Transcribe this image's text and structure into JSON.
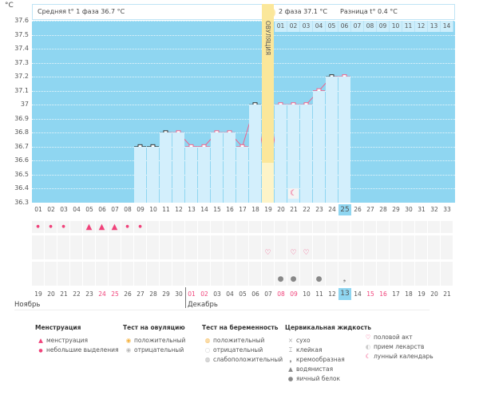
{
  "unit": "°C",
  "header": {
    "phase1": "Средняя t° 1 фаза 36.7 °C",
    "phase2": "2 фаза 37.1 °C",
    "diff": "Разница t° 0.4 °C"
  },
  "ovulation_label": "ОВУЛЯЦИЯ",
  "y_ticks": [
    "37.6",
    "37.5",
    "37.4",
    "37.3",
    "37.2",
    "37.1",
    "37",
    "36.9",
    "36.8",
    "36.7",
    "36.6",
    "36.5",
    "36.4",
    "36.3"
  ],
  "cycle_days": [
    "01",
    "02",
    "03",
    "04",
    "05",
    "06",
    "07",
    "08",
    "09",
    "10",
    "11",
    "12",
    "13",
    "14",
    "15",
    "16",
    "17",
    "18",
    "19",
    "20",
    "21",
    "22",
    "23",
    "24",
    "25",
    "26",
    "27",
    "28",
    "29",
    "30",
    "31",
    "32",
    "33"
  ],
  "phase2_days": [
    "01",
    "02",
    "03",
    "04",
    "05",
    "06",
    "07",
    "08",
    "09",
    "10",
    "11",
    "12",
    "13",
    "14"
  ],
  "current_day_index": 24,
  "ovulation_day_index": 18,
  "chart_data": {
    "type": "line",
    "x": [
      9,
      10,
      11,
      12,
      13,
      14,
      15,
      16,
      17,
      18,
      19,
      20,
      21,
      22,
      23,
      24,
      25
    ],
    "y": [
      36.7,
      36.7,
      36.8,
      36.8,
      36.7,
      36.7,
      36.8,
      36.8,
      36.7,
      37.0,
      36.5,
      37.0,
      37.0,
      37.0,
      37.1,
      37.2,
      37.2
    ],
    "excluded_days": [
      9,
      10,
      11,
      18,
      24
    ],
    "ylim": [
      36.3,
      37.6
    ],
    "ylabel": "°C",
    "coverline": 36.8
  },
  "moon_day_index": 20,
  "menstruation": [
    "light",
    "light",
    "light",
    "",
    "heavy",
    "heavy",
    "heavy",
    "light",
    "light"
  ],
  "intercourse_days": [
    18,
    20,
    21
  ],
  "cervical": {
    "19": "watery",
    "20": "watery",
    "22": "watery",
    "24": "creamy"
  },
  "calendar_dates": [
    "19",
    "20",
    "21",
    "22",
    "23",
    "24",
    "25",
    "26",
    "27",
    "28",
    "29",
    "30",
    "01",
    "02",
    "03",
    "04",
    "05",
    "06",
    "07",
    "08",
    "09",
    "10",
    "11",
    "12",
    "13",
    "14",
    "15",
    "16",
    "17",
    "18",
    "19",
    "20",
    "21"
  ],
  "red_dates": [
    5,
    6,
    12,
    13,
    19,
    20,
    26,
    27
  ],
  "months": {
    "nov": "Ноябрь",
    "dec": "Декабрь"
  },
  "legend": {
    "menstruation": {
      "title": "Менструация",
      "items": [
        "менструация",
        "небольшие выделения"
      ]
    },
    "ovulation_test": {
      "title": "Тест на овуляцию",
      "items": [
        "положительный",
        "отрицательный"
      ]
    },
    "pregnancy_test": {
      "title": "Тест на беременность",
      "items": [
        "положительный",
        "отрицательный",
        "слабоположительный"
      ]
    },
    "cervical": {
      "title": "Цервикальная жидкость",
      "items": [
        "сухо",
        "клейкая",
        "кремообразная",
        "водянистая",
        "яичный белок"
      ]
    },
    "other": [
      "половой акт",
      "прием лекарств",
      "лунный календарь"
    ]
  },
  "colors": {
    "sky": "#8fd6f1",
    "col": "#d3effc",
    "ovulation": "#fbe79a",
    "line": "#f0648c"
  }
}
